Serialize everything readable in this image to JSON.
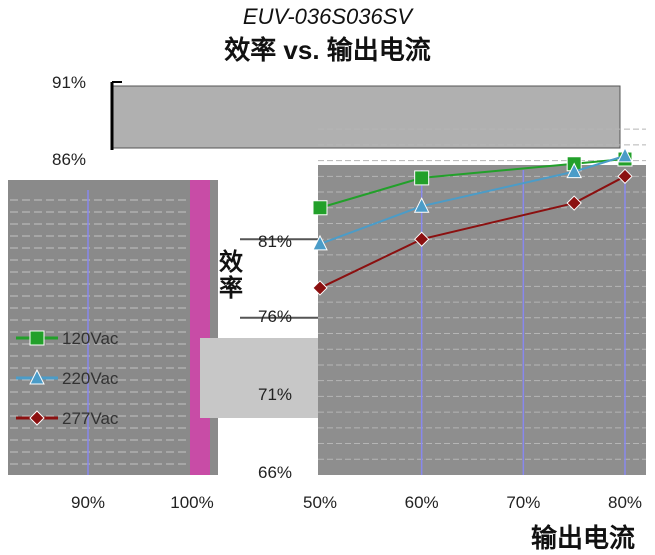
{
  "model_name": "EUV-036S036SV",
  "chart_data": {
    "type": "line",
    "title": "效率 vs. 输出电流",
    "xlabel": "输出电流",
    "ylabel": "效率",
    "y_ticks": [
      "66%",
      "71%",
      "76%",
      "81%",
      "86%",
      "91%"
    ],
    "ylim": [
      66,
      91
    ],
    "x_ticks_right": [
      "50%",
      "60%",
      "70%",
      "80%"
    ],
    "x_ticks_left": [
      "90%",
      "100%"
    ],
    "xlim": [
      50,
      80
    ],
    "grid": true,
    "legend_position": "left",
    "series": [
      {
        "name": "120Vac",
        "x": [
          50,
          60,
          75,
          80
        ],
        "y": [
          83.0,
          84.9,
          85.8,
          86.1
        ],
        "color": "#22a02a",
        "marker": "square"
      },
      {
        "name": "220Vac",
        "x": [
          50,
          60,
          75,
          80
        ],
        "y": [
          80.7,
          83.1,
          85.3,
          86.3
        ],
        "color": "#4b9cc8",
        "marker": "triangle"
      },
      {
        "name": "277Vac",
        "x": [
          50,
          60,
          75,
          80
        ],
        "y": [
          77.9,
          81.0,
          83.3,
          85.0
        ],
        "color": "#8b1010",
        "marker": "diamond"
      }
    ]
  }
}
